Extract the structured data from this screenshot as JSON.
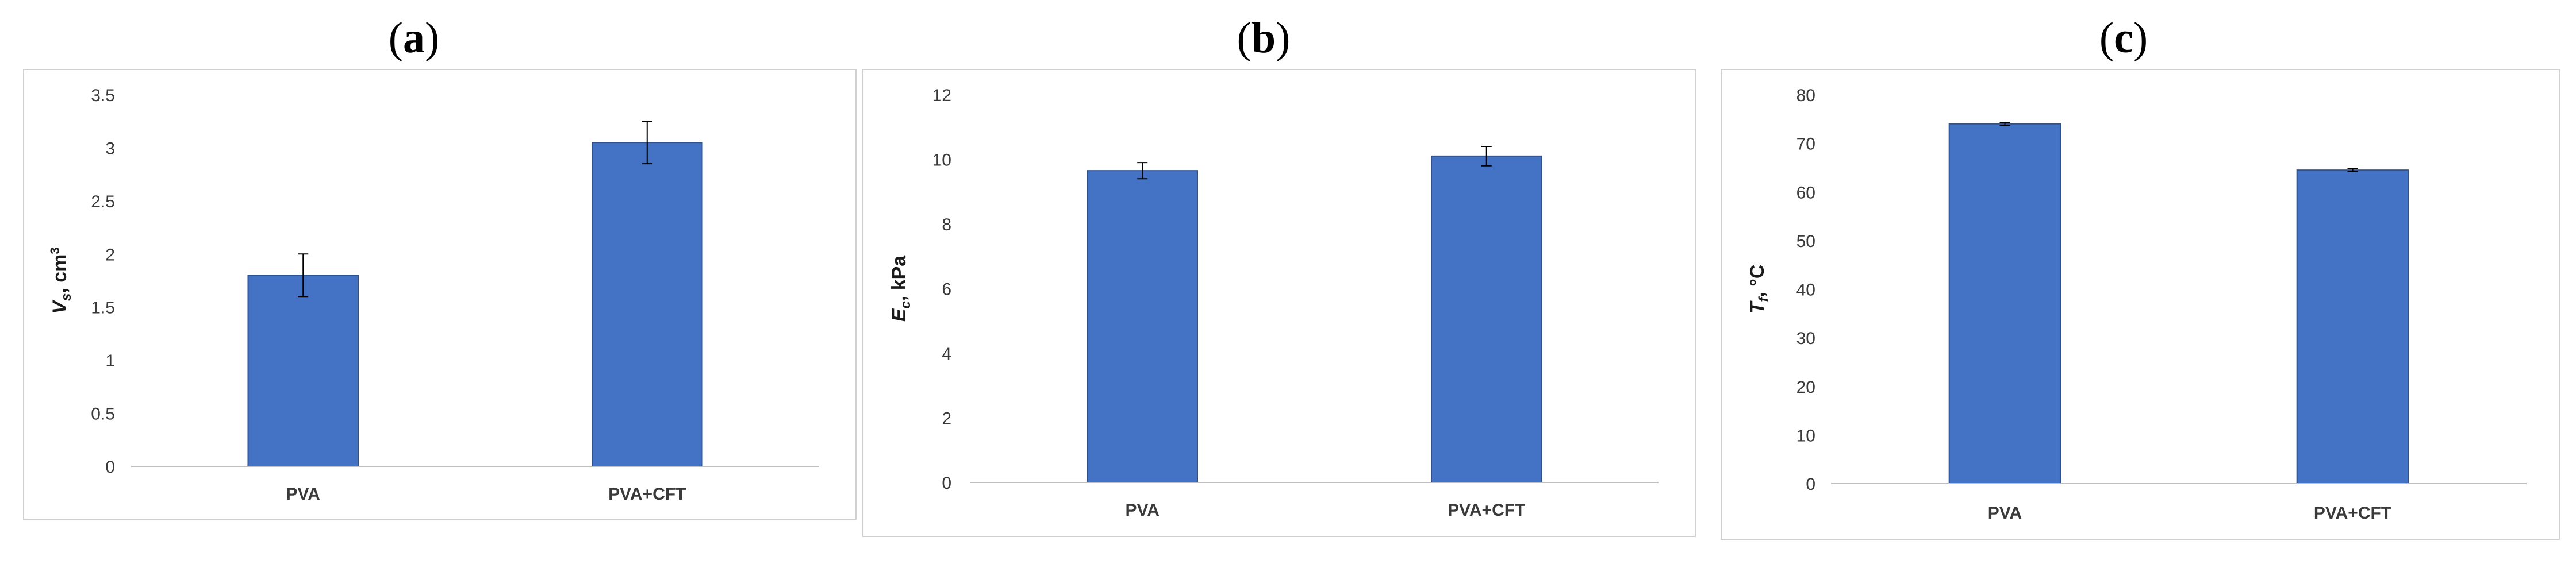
{
  "panels": [
    {
      "label_open": "(",
      "label_letter": "a",
      "label_close": ")"
    },
    {
      "label_open": "(",
      "label_letter": "b",
      "label_close": ")"
    },
    {
      "label_open": "(",
      "label_letter": "c",
      "label_close": ")"
    }
  ],
  "chart_data": [
    {
      "type": "bar",
      "categories": [
        "PVA",
        "PVA+CFT"
      ],
      "values": [
        1.8,
        3.05
      ],
      "errors": [
        0.2,
        0.2
      ],
      "ylabel_symbol": "V",
      "ylabel_sub": "s",
      "ylabel_unit": ", cm",
      "ylabel_sup": "3",
      "ylim": [
        0,
        3.5
      ],
      "yticks": [
        "0",
        "0.5",
        "1",
        "1.5",
        "2",
        "2.5",
        "3",
        "3.5"
      ],
      "ytick_values": [
        0,
        0.5,
        1,
        1.5,
        2,
        2.5,
        3,
        3.5
      ],
      "bar_color": "#4472c4",
      "grid": false
    },
    {
      "type": "bar",
      "categories": [
        "PVA",
        "PVA+CFT"
      ],
      "values": [
        9.65,
        10.1
      ],
      "errors": [
        0.25,
        0.3
      ],
      "ylabel_symbol": "E",
      "ylabel_sub": "c",
      "ylabel_unit": ", kPa",
      "ylabel_sup": "",
      "ylim": [
        0,
        12
      ],
      "yticks": [
        "0",
        "2",
        "4",
        "6",
        "8",
        "10",
        "12"
      ],
      "ytick_values": [
        0,
        2,
        4,
        6,
        8,
        10,
        12
      ],
      "bar_color": "#4472c4",
      "grid": false
    },
    {
      "type": "bar",
      "categories": [
        "PVA",
        "PVA+CFT"
      ],
      "values": [
        74,
        64.5
      ],
      "errors": [
        0.3,
        0.3
      ],
      "ylabel_symbol": "T",
      "ylabel_sub": "f",
      "ylabel_unit": ", °C",
      "ylabel_sup": "",
      "ylim": [
        0,
        80
      ],
      "yticks": [
        "0",
        "10",
        "20",
        "30",
        "40",
        "50",
        "60",
        "70",
        "80"
      ],
      "ytick_values": [
        0,
        10,
        20,
        30,
        40,
        50,
        60,
        70,
        80
      ],
      "bar_color": "#4472c4",
      "grid": false
    }
  ]
}
